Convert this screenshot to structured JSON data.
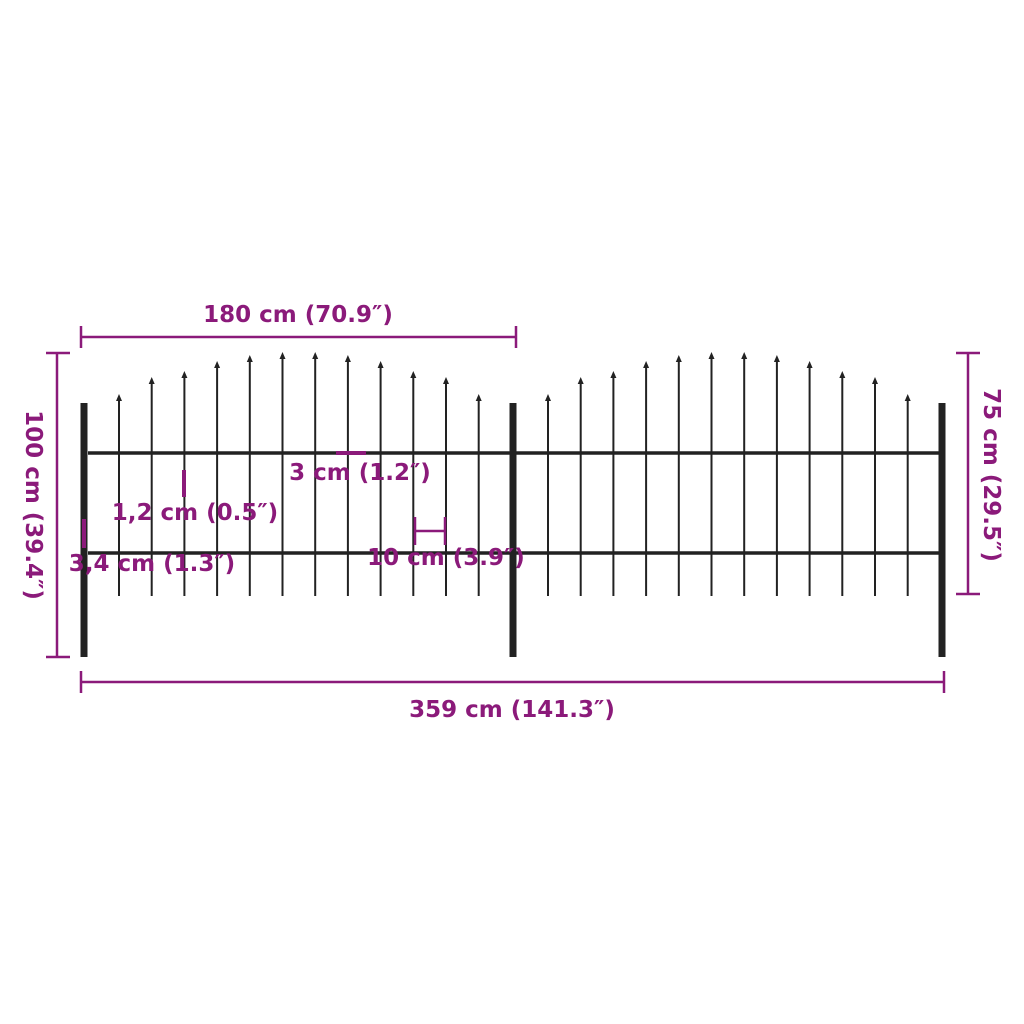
{
  "colors": {
    "dimension": "#8b1a7a",
    "fence": "#222222",
    "background": "#ffffff"
  },
  "dimensions": {
    "panel_width": "180 cm (70.9″)",
    "total_width": "359 cm (141.3″)",
    "total_height": "100 cm (39.4″)",
    "fence_height": "75 cm (29.5″)",
    "picket_spike": "3 cm (1.2″)",
    "picket_thickness": "1,2 cm (0.5″)",
    "post_thickness": "3,4 cm (1.3″)",
    "picket_spacing": "10 cm (3.9″)"
  }
}
